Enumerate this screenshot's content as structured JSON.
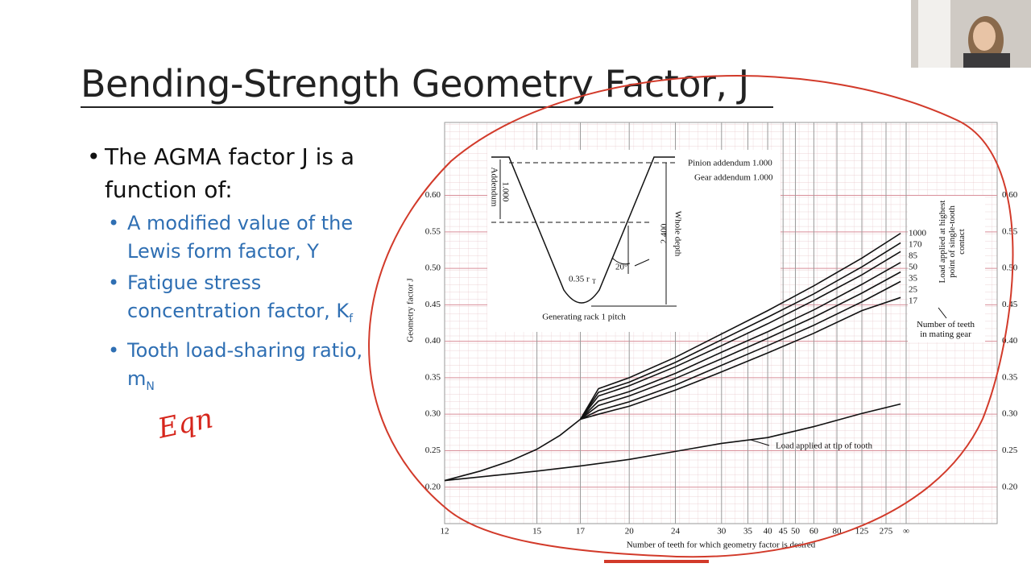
{
  "slide": {
    "title": "Bending-Strength Geometry Factor, J",
    "bullets": [
      {
        "text": "The AGMA factor J is a function of:",
        "subitems": [
          {
            "text": "A modified value of the Lewis form factor, Y"
          },
          {
            "text": "Fatigue stress concentration factor, K",
            "subscript": "f"
          },
          {
            "text": "Tooth load-sharing ratio, m",
            "subscript": "N"
          }
        ]
      }
    ],
    "annotation": "Eqn"
  },
  "figure": {
    "type": "line",
    "y_label": "Geometry factor J",
    "x_label": "Number of teeth for which geometry factor is desired",
    "xscale": "reciprocal",
    "xlim": [
      12,
      null
    ],
    "xticks": [
      12,
      15,
      17,
      20,
      24,
      30,
      35,
      40,
      45,
      50,
      60,
      80,
      125,
      275,
      {
        "value": null,
        "label": "∞"
      }
    ],
    "ylim": [
      0.15,
      0.7
    ],
    "yticks": [
      {
        "value": 0.2,
        "label": "0.20"
      },
      0.25,
      {
        "value": 0.3,
        "label": "0.30"
      },
      0.35,
      {
        "value": 0.4,
        "label": "0.40"
      },
      0.45,
      {
        "value": 0.5,
        "label": "0.50"
      },
      0.55,
      {
        "value": 0.6,
        "label": "0.60"
      }
    ],
    "grid": true,
    "grid_color": "#d98f9a",
    "line_color": "#111111",
    "mating_gear_title": "Number of teeth in mating gear",
    "load_note": "Load applied at highest point of single-tooth contact",
    "series": [
      {
        "x": [
          12,
          13,
          14,
          15,
          16,
          17
        ],
        "values": [
          0.209,
          0.222,
          0.236,
          0.252,
          0.271,
          0.293
        ]
      },
      {
        "name": "Load applied at tip of tooth",
        "x": [
          12,
          15,
          17,
          20,
          24,
          30,
          40,
          60,
          125,
          1000
        ],
        "values": [
          0.209,
          0.222,
          0.229,
          0.238,
          0.249,
          0.26,
          0.268,
          0.283,
          0.301,
          0.314
        ]
      },
      {
        "name": "1000",
        "x": [
          17,
          18,
          20,
          24,
          30,
          40,
          60,
          125,
          1000
        ],
        "values": [
          0.293,
          0.335,
          0.35,
          0.378,
          0.41,
          0.442,
          0.476,
          0.514,
          0.548
        ]
      },
      {
        "name": "170",
        "x": [
          17,
          18,
          20,
          24,
          30,
          40,
          60,
          125,
          1000
        ],
        "values": [
          0.293,
          0.33,
          0.344,
          0.371,
          0.402,
          0.433,
          0.465,
          0.502,
          0.535
        ]
      },
      {
        "name": "85",
        "x": [
          17,
          18,
          20,
          24,
          30,
          40,
          60,
          125,
          1000
        ],
        "values": [
          0.293,
          0.325,
          0.339,
          0.365,
          0.394,
          0.424,
          0.456,
          0.491,
          0.523
        ]
      },
      {
        "name": "50",
        "x": [
          17,
          18,
          20,
          24,
          30,
          40,
          60,
          125,
          1000
        ],
        "values": [
          0.293,
          0.318,
          0.331,
          0.356,
          0.385,
          0.413,
          0.443,
          0.478,
          0.508
        ]
      },
      {
        "name": "35",
        "x": [
          17,
          18,
          20,
          24,
          30,
          40,
          60,
          125,
          1000
        ],
        "values": [
          0.293,
          0.312,
          0.325,
          0.349,
          0.376,
          0.404,
          0.433,
          0.466,
          0.495
        ]
      },
      {
        "name": "25",
        "x": [
          17,
          18,
          20,
          24,
          30,
          40,
          60,
          125,
          1000
        ],
        "values": [
          0.293,
          0.305,
          0.317,
          0.34,
          0.367,
          0.394,
          0.422,
          0.454,
          0.482
        ]
      },
      {
        "name": "17",
        "x": [
          17,
          18,
          20,
          24,
          30,
          40,
          60,
          125,
          1000
        ],
        "values": [
          0.293,
          0.3,
          0.311,
          0.333,
          0.358,
          0.384,
          0.411,
          0.442,
          0.46
        ]
      }
    ],
    "inset": {
      "pinion": "Pinion addendum 1.000",
      "gear": "Gear addendum 1.000",
      "addendum": "Addendum",
      "addendum_value": "1.000",
      "whole_depth": "Whole depth",
      "whole_depth_value": "2.400",
      "angle": "20°",
      "radius": "0.35 r",
      "radius_sub": "T",
      "caption": "Generating rack 1 pitch"
    }
  }
}
